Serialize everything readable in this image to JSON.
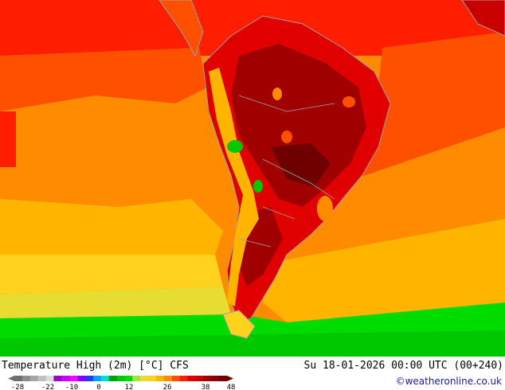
{
  "map": {
    "title": "Temperature High (2m) [°C] CFS",
    "valid_time": "Su 18-01-2026 00:00 UTC (00+240)",
    "credit": "©weatheronline.co.uk",
    "region": "South America",
    "colors": {
      "hottest": "#8b0000",
      "very_hot": "#c80000",
      "hot": "#ff1e00",
      "warm": "#ff8c00",
      "mild": "#ffd21e",
      "cool": "#00dc00",
      "ocean_warm": "#ff5000",
      "borders": "#a0a0a0"
    }
  },
  "legend": {
    "tick_labels": [
      "-28",
      "-22",
      "-10",
      "0",
      "12",
      "26",
      "38",
      "48"
    ],
    "colors": [
      "#6e6e6e",
      "#8c8c8c",
      "#a6a6a6",
      "#c0c0c0",
      "#dcdcdc",
      "#a000c8",
      "#c800ff",
      "#ff00ff",
      "#8000ff",
      "#1e3cff",
      "#00a0ff",
      "#00dcdc",
      "#00a000",
      "#00c800",
      "#00dc00",
      "#a0e632",
      "#e6dc32",
      "#ffd21e",
      "#ffb400",
      "#ff8c00",
      "#ff5000",
      "#ff1e00",
      "#e00000",
      "#c80000",
      "#a00000",
      "#8b0000",
      "#6e0000"
    ]
  }
}
